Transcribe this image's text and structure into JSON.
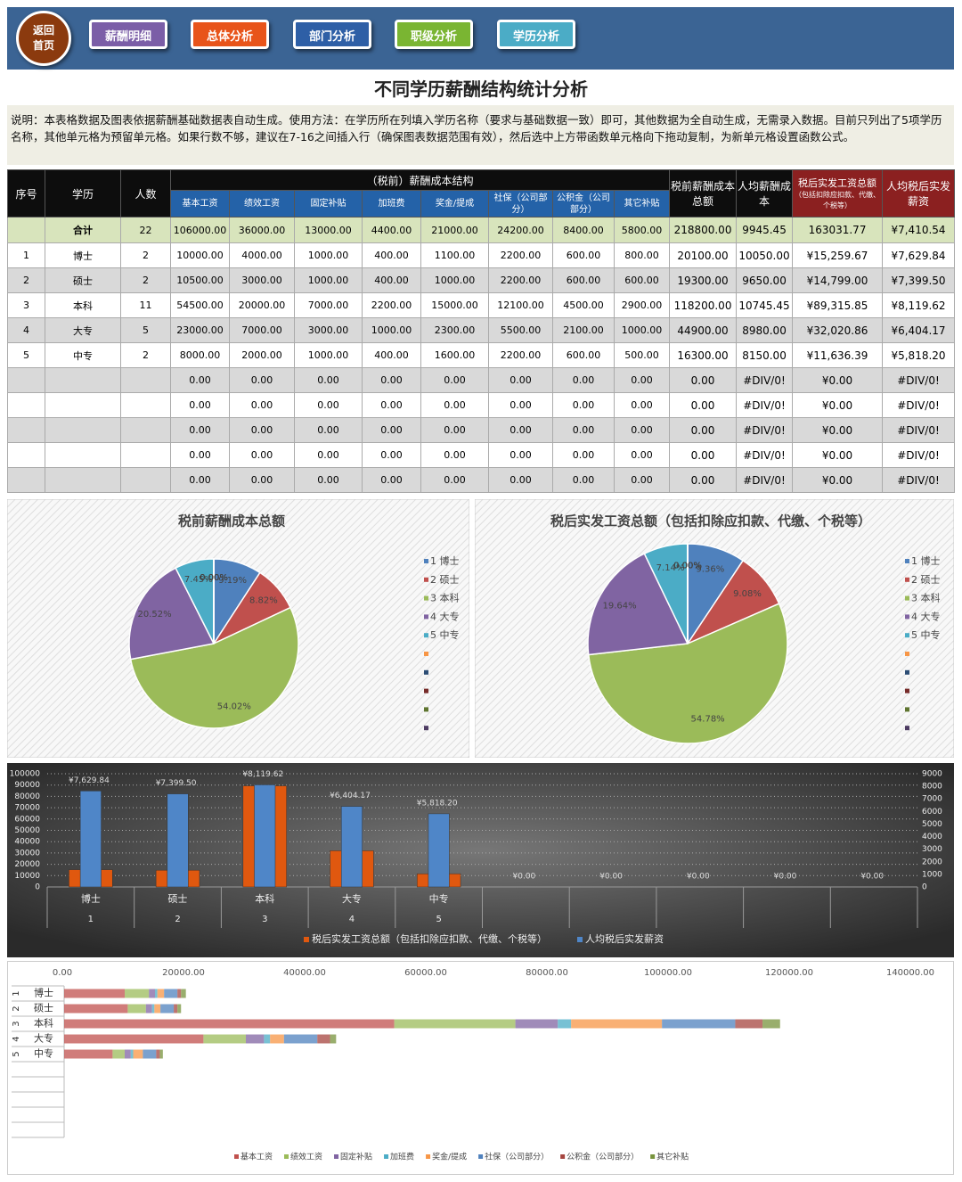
{
  "nav": {
    "home": [
      "返回",
      "首页"
    ],
    "buttons": [
      "薪酬明细",
      "总体分析",
      "部门分析",
      "职级分析",
      "学历分析"
    ]
  },
  "title": "不同学历薪酬结构统计分析",
  "note": "说明：本表格数据及图表依据薪酬基础数据表自动生成。使用方法：在学历所在列填入学历名称（要求与基础数据一致）即可，其他数据为全自动生成，无需录入数据。目前只列出了5项学历名称，其他单元格为预留单元格。如果行数不够，建议在7-16之间插入行（确保图表数据范围有效），然后选中上方带函数单元格向下拖动复制，为新单元格设置函数公式。",
  "table": {
    "group_header": "（税前）薪酬成本结构",
    "headers": [
      "序号",
      "学历",
      "人数",
      "基本工资",
      "绩效工资",
      "固定补贴",
      "加班费",
      "奖金/提成",
      "社保（公司部分）",
      "公积金（公司部分）",
      "其它补贴",
      "税前薪酬成本总额",
      "人均薪酬成本",
      "税后实发工资总额",
      "人均税后实发薪资"
    ],
    "tax_note": "（包括扣除应扣款、代缴、个税等）",
    "rows": [
      [
        null,
        "合计",
        "22",
        "106000.00",
        "36000.00",
        "13000.00",
        "4400.00",
        "21000.00",
        "24200.00",
        "8400.00",
        "5800.00",
        "218800.00",
        "9945.45",
        "163031.77",
        "¥7,410.54"
      ],
      [
        "1",
        "博士",
        "2",
        "10000.00",
        "4000.00",
        "1000.00",
        "400.00",
        "1100.00",
        "2200.00",
        "600.00",
        "800.00",
        "20100.00",
        "10050.00",
        "¥15,259.67",
        "¥7,629.84"
      ],
      [
        "2",
        "硕士",
        "2",
        "10500.00",
        "3000.00",
        "1000.00",
        "400.00",
        "1000.00",
        "2200.00",
        "600.00",
        "600.00",
        "19300.00",
        "9650.00",
        "¥14,799.00",
        "¥7,399.50"
      ],
      [
        "3",
        "本科",
        "11",
        "54500.00",
        "20000.00",
        "7000.00",
        "2200.00",
        "15000.00",
        "12100.00",
        "4500.00",
        "2900.00",
        "118200.00",
        "10745.45",
        "¥89,315.85",
        "¥8,119.62"
      ],
      [
        "4",
        "大专",
        "5",
        "23000.00",
        "7000.00",
        "3000.00",
        "1000.00",
        "2300.00",
        "5500.00",
        "2100.00",
        "1000.00",
        "44900.00",
        "8980.00",
        "¥32,020.86",
        "¥6,404.17"
      ],
      [
        "5",
        "中专",
        "2",
        "8000.00",
        "2000.00",
        "1000.00",
        "400.00",
        "1600.00",
        "2200.00",
        "600.00",
        "500.00",
        "16300.00",
        "8150.00",
        "¥11,636.39",
        "¥5,818.20"
      ],
      [
        null,
        null,
        null,
        "0.00",
        "0.00",
        "0.00",
        "0.00",
        "0.00",
        "0.00",
        "0.00",
        "0.00",
        "0.00",
        "#DIV/0!",
        "¥0.00",
        "#DIV/0!"
      ],
      [
        null,
        null,
        null,
        "0.00",
        "0.00",
        "0.00",
        "0.00",
        "0.00",
        "0.00",
        "0.00",
        "0.00",
        "0.00",
        "#DIV/0!",
        "¥0.00",
        "#DIV/0!"
      ],
      [
        null,
        null,
        null,
        "0.00",
        "0.00",
        "0.00",
        "0.00",
        "0.00",
        "0.00",
        "0.00",
        "0.00",
        "0.00",
        "#DIV/0!",
        "¥0.00",
        "#DIV/0!"
      ],
      [
        null,
        null,
        null,
        "0.00",
        "0.00",
        "0.00",
        "0.00",
        "0.00",
        "0.00",
        "0.00",
        "0.00",
        "0.00",
        "#DIV/0!",
        "¥0.00",
        "#DIV/0!"
      ],
      [
        null,
        null,
        null,
        "0.00",
        "0.00",
        "0.00",
        "0.00",
        "0.00",
        "0.00",
        "0.00",
        "0.00",
        "0.00",
        "#DIV/0!",
        "¥0.00",
        "#DIV/0!"
      ]
    ]
  },
  "chart_data": [
    {
      "type": "pie",
      "title": "税前薪酬成本总额",
      "categories": [
        "1 博士",
        "2 硕士",
        "3 本科",
        "4 大专",
        "5 中专",
        null,
        null,
        null,
        null,
        null
      ],
      "values": [
        9.19,
        8.82,
        54.02,
        20.52,
        7.45,
        0,
        0,
        0,
        0,
        0
      ],
      "value_labels": [
        "9.19%",
        "8.82%",
        "54.02%",
        "20.52%",
        "7.45%",
        "0.00%",
        "0.00%",
        "0.00%",
        "0.00%",
        "0.00%"
      ],
      "colors": [
        "#4f81bd",
        "#c0504d",
        "#9bbb59",
        "#8064a2",
        "#4bacc6",
        "#f79646",
        "#2c4d75",
        "#772c2a",
        "#5f7530",
        "#4d3b62"
      ],
      "legend": "right"
    },
    {
      "type": "pie",
      "title": "税后实发工资总额（包括扣除应扣款、代缴、个税等）",
      "categories": [
        "1 博士",
        "2 硕士",
        "3 本科",
        "4 大专",
        "5 中专",
        null,
        null,
        null,
        null,
        null
      ],
      "values": [
        9.36,
        9.08,
        54.78,
        19.64,
        7.14,
        0,
        0,
        0,
        0,
        0
      ],
      "value_labels": [
        "9.36%",
        "9.08%",
        "54.78%",
        "19.64%",
        "7.14%",
        "0.00%",
        "0.00%",
        "0.00%",
        "0.00%",
        "0.00%"
      ],
      "colors": [
        "#4f81bd",
        "#c0504d",
        "#9bbb59",
        "#8064a2",
        "#4bacc6",
        "#f79646",
        "#2c4d75",
        "#772c2a",
        "#5f7530",
        "#4d3b62"
      ],
      "legend": "right"
    },
    {
      "type": "combo",
      "categories": [
        "博士",
        "硕士",
        "本科",
        "大专",
        "中专",
        null,
        null,
        null,
        null,
        null
      ],
      "category_codes": [
        "1",
        "2",
        "3",
        "4",
        "5",
        null,
        null,
        null,
        null,
        null
      ],
      "series": [
        {
          "name": "税后实发工资总额（包括扣除应扣款、代缴、个税等）",
          "color": "#e0580f",
          "axis": "y",
          "values": [
            15259.67,
            14799.0,
            89315.85,
            32020.86,
            11636.39,
            0,
            0,
            0,
            0,
            0
          ]
        },
        {
          "name": "人均税后实发薪资",
          "color": "#4f86c8",
          "axis": "y2",
          "values": [
            7629.84,
            7399.5,
            8119.62,
            6404.17,
            5818.2,
            0,
            0,
            0,
            0,
            0
          ],
          "value_labels": [
            "¥7,629.84",
            "¥7,399.50",
            "¥8,119.62",
            "¥6,404.17",
            "¥5,818.20",
            "¥0.00",
            "¥0.00",
            "¥0.00",
            "¥0.00",
            "¥0.00"
          ]
        }
      ],
      "ylim": [
        0,
        100000
      ],
      "yticks": [
        0,
        10000,
        20000,
        30000,
        40000,
        50000,
        60000,
        70000,
        80000,
        90000,
        100000
      ],
      "y2lim": [
        0,
        9000
      ],
      "y2ticks": [
        0,
        1000,
        2000,
        3000,
        4000,
        5000,
        6000,
        7000,
        8000,
        9000
      ],
      "grid": true,
      "legend": "bottom"
    },
    {
      "type": "hbar_stacked",
      "categories": [
        "博士",
        "硕士",
        "本科",
        "大专",
        "中专",
        null,
        null,
        null,
        null,
        null
      ],
      "category_codes": [
        "1",
        "2",
        "3",
        "4",
        "5",
        null,
        null,
        null,
        null,
        null
      ],
      "series": [
        {
          "name": "基本工资",
          "color": "#c0504d",
          "values": [
            10000,
            10500,
            54500,
            23000,
            8000,
            0,
            0,
            0,
            0,
            0
          ]
        },
        {
          "name": "绩效工资",
          "color": "#9bbb59",
          "values": [
            4000,
            3000,
            20000,
            7000,
            2000,
            0,
            0,
            0,
            0,
            0
          ]
        },
        {
          "name": "固定补贴",
          "color": "#8064a2",
          "values": [
            1000,
            1000,
            7000,
            3000,
            1000,
            0,
            0,
            0,
            0,
            0
          ]
        },
        {
          "name": "加班费",
          "color": "#4bacc6",
          "values": [
            400,
            400,
            2200,
            1000,
            400,
            0,
            0,
            0,
            0,
            0
          ]
        },
        {
          "name": "奖金/提成",
          "color": "#f79646",
          "values": [
            1100,
            1000,
            15000,
            2300,
            1600,
            0,
            0,
            0,
            0,
            0
          ]
        },
        {
          "name": "社保（公司部分）",
          "color": "#4f81bd",
          "values": [
            2200,
            2200,
            12100,
            5500,
            2200,
            0,
            0,
            0,
            0,
            0
          ]
        },
        {
          "name": "公积金（公司部分）",
          "color": "#a5443f",
          "values": [
            600,
            600,
            4500,
            2100,
            600,
            0,
            0,
            0,
            0,
            0
          ]
        },
        {
          "name": "其它补贴",
          "color": "#77933c",
          "values": [
            800,
            600,
            2900,
            1000,
            500,
            0,
            0,
            0,
            0,
            0
          ]
        }
      ],
      "xlim": [
        0,
        140000
      ],
      "xticks": [
        {
          "value": 0,
          "label": "0.00"
        },
        {
          "value": 20000,
          "label": "20000.00"
        },
        {
          "value": 40000,
          "label": "40000.00"
        },
        {
          "value": 60000,
          "label": "60000.00"
        },
        {
          "value": 80000,
          "label": "80000.00"
        },
        {
          "value": 100000,
          "label": "100000.00"
        },
        {
          "value": 120000,
          "label": "120000.00"
        },
        {
          "value": 140000,
          "label": "140000.00"
        }
      ],
      "grid": false,
      "legend": "bottom"
    }
  ]
}
